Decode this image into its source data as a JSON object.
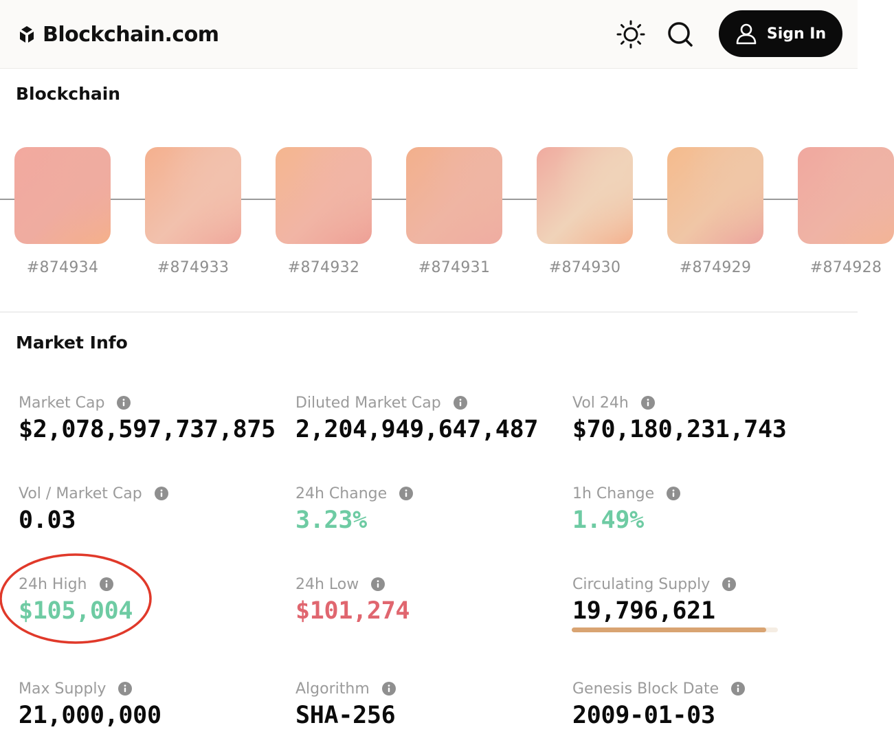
{
  "header": {
    "brand": "Blockchain.com",
    "theme_icon": "sun-icon",
    "search_icon": "search-icon",
    "signin_label": "Sign In"
  },
  "blockchain": {
    "title": "Blockchain",
    "blocks": [
      {
        "label": "#874934",
        "gradient": [
          "#f2a99f",
          "#efaca0",
          "#f5b08a"
        ]
      },
      {
        "label": "#874933",
        "gradient": [
          "#f4b08e",
          "#f2c1ad",
          "#f0a89c"
        ]
      },
      {
        "label": "#874932",
        "gradient": [
          "#f5b68f",
          "#f1b5a5",
          "#eea096"
        ]
      },
      {
        "label": "#874931",
        "gradient": [
          "#f3b08c",
          "#efb5a3",
          "#efaca1"
        ]
      },
      {
        "label": "#874930",
        "gradient": [
          "#f0aa9f",
          "#f0d3b9",
          "#f4b290"
        ]
      },
      {
        "label": "#874929",
        "gradient": [
          "#f5bb8d",
          "#f0c6a6",
          "#eca49e"
        ]
      },
      {
        "label": "#874928",
        "gradient": [
          "#f0a89f",
          "#efb3a5",
          "#f3b496"
        ]
      }
    ]
  },
  "market": {
    "title": "Market Info",
    "stats": {
      "market_cap": {
        "label": "Market Cap",
        "value": "$2,078,597,737,875"
      },
      "diluted_market_cap": {
        "label": "Diluted Market Cap",
        "value": "2,204,949,647,487"
      },
      "vol_24h": {
        "label": "Vol 24h",
        "value": "$70,180,231,743"
      },
      "vol_market_cap": {
        "label": "Vol / Market Cap",
        "value": "0.03"
      },
      "change_24h": {
        "label": "24h Change",
        "value": "3.23%"
      },
      "change_1h": {
        "label": "1h Change",
        "value": "1.49%"
      },
      "high_24h": {
        "label": "24h High",
        "value": "$105,004"
      },
      "low_24h": {
        "label": "24h Low",
        "value": "$101,274"
      },
      "circulating_supply": {
        "label": "Circulating Supply",
        "value": "19,796,621",
        "progress": 0.943
      },
      "max_supply": {
        "label": "Max Supply",
        "value": "21,000,000"
      },
      "algorithm": {
        "label": "Algorithm",
        "value": "SHA-256"
      },
      "genesis_block_date": {
        "label": "Genesis Block Date",
        "value": "2009-01-03"
      }
    }
  },
  "colors": {
    "positive": "#6ecba3",
    "negative": "#e0666f",
    "supply_bar": "#d9a472",
    "annotation": "#e0392a"
  }
}
